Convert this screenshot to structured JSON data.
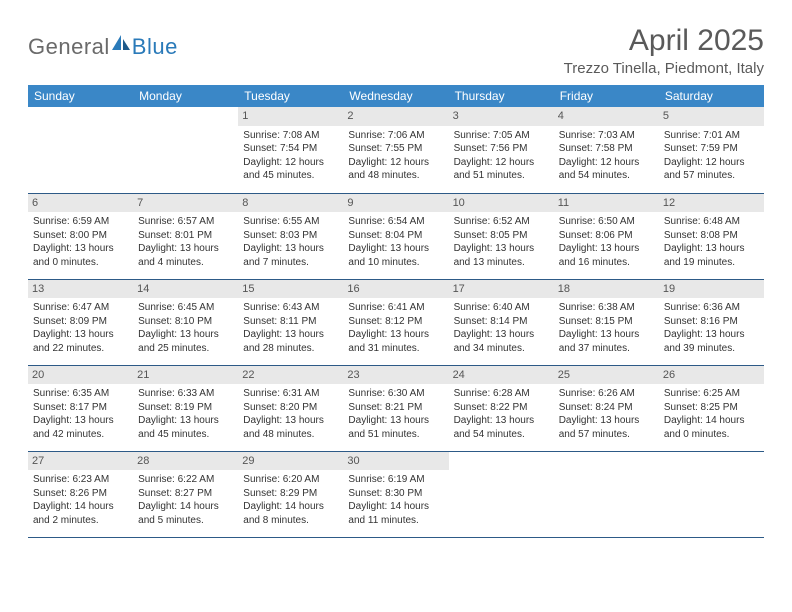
{
  "brand": {
    "part1": "General",
    "part2": "Blue"
  },
  "title": "April 2025",
  "location": "Trezzo Tinella, Piedmont, Italy",
  "colors": {
    "header_bg": "#3a87c7",
    "header_text": "#ffffff",
    "border": "#2d5a87",
    "daynum_bg": "#e8e8e8",
    "text": "#333333",
    "brand_gray": "#6a6a6a",
    "brand_blue": "#2a7ab9"
  },
  "weekdays": [
    "Sunday",
    "Monday",
    "Tuesday",
    "Wednesday",
    "Thursday",
    "Friday",
    "Saturday"
  ],
  "weeks": [
    [
      {
        "day": "",
        "sunrise": "",
        "sunset": "",
        "daylight": ""
      },
      {
        "day": "",
        "sunrise": "",
        "sunset": "",
        "daylight": ""
      },
      {
        "day": "1",
        "sunrise": "Sunrise: 7:08 AM",
        "sunset": "Sunset: 7:54 PM",
        "daylight": "Daylight: 12 hours and 45 minutes."
      },
      {
        "day": "2",
        "sunrise": "Sunrise: 7:06 AM",
        "sunset": "Sunset: 7:55 PM",
        "daylight": "Daylight: 12 hours and 48 minutes."
      },
      {
        "day": "3",
        "sunrise": "Sunrise: 7:05 AM",
        "sunset": "Sunset: 7:56 PM",
        "daylight": "Daylight: 12 hours and 51 minutes."
      },
      {
        "day": "4",
        "sunrise": "Sunrise: 7:03 AM",
        "sunset": "Sunset: 7:58 PM",
        "daylight": "Daylight: 12 hours and 54 minutes."
      },
      {
        "day": "5",
        "sunrise": "Sunrise: 7:01 AM",
        "sunset": "Sunset: 7:59 PM",
        "daylight": "Daylight: 12 hours and 57 minutes."
      }
    ],
    [
      {
        "day": "6",
        "sunrise": "Sunrise: 6:59 AM",
        "sunset": "Sunset: 8:00 PM",
        "daylight": "Daylight: 13 hours and 0 minutes."
      },
      {
        "day": "7",
        "sunrise": "Sunrise: 6:57 AM",
        "sunset": "Sunset: 8:01 PM",
        "daylight": "Daylight: 13 hours and 4 minutes."
      },
      {
        "day": "8",
        "sunrise": "Sunrise: 6:55 AM",
        "sunset": "Sunset: 8:03 PM",
        "daylight": "Daylight: 13 hours and 7 minutes."
      },
      {
        "day": "9",
        "sunrise": "Sunrise: 6:54 AM",
        "sunset": "Sunset: 8:04 PM",
        "daylight": "Daylight: 13 hours and 10 minutes."
      },
      {
        "day": "10",
        "sunrise": "Sunrise: 6:52 AM",
        "sunset": "Sunset: 8:05 PM",
        "daylight": "Daylight: 13 hours and 13 minutes."
      },
      {
        "day": "11",
        "sunrise": "Sunrise: 6:50 AM",
        "sunset": "Sunset: 8:06 PM",
        "daylight": "Daylight: 13 hours and 16 minutes."
      },
      {
        "day": "12",
        "sunrise": "Sunrise: 6:48 AM",
        "sunset": "Sunset: 8:08 PM",
        "daylight": "Daylight: 13 hours and 19 minutes."
      }
    ],
    [
      {
        "day": "13",
        "sunrise": "Sunrise: 6:47 AM",
        "sunset": "Sunset: 8:09 PM",
        "daylight": "Daylight: 13 hours and 22 minutes."
      },
      {
        "day": "14",
        "sunrise": "Sunrise: 6:45 AM",
        "sunset": "Sunset: 8:10 PM",
        "daylight": "Daylight: 13 hours and 25 minutes."
      },
      {
        "day": "15",
        "sunrise": "Sunrise: 6:43 AM",
        "sunset": "Sunset: 8:11 PM",
        "daylight": "Daylight: 13 hours and 28 minutes."
      },
      {
        "day": "16",
        "sunrise": "Sunrise: 6:41 AM",
        "sunset": "Sunset: 8:12 PM",
        "daylight": "Daylight: 13 hours and 31 minutes."
      },
      {
        "day": "17",
        "sunrise": "Sunrise: 6:40 AM",
        "sunset": "Sunset: 8:14 PM",
        "daylight": "Daylight: 13 hours and 34 minutes."
      },
      {
        "day": "18",
        "sunrise": "Sunrise: 6:38 AM",
        "sunset": "Sunset: 8:15 PM",
        "daylight": "Daylight: 13 hours and 37 minutes."
      },
      {
        "day": "19",
        "sunrise": "Sunrise: 6:36 AM",
        "sunset": "Sunset: 8:16 PM",
        "daylight": "Daylight: 13 hours and 39 minutes."
      }
    ],
    [
      {
        "day": "20",
        "sunrise": "Sunrise: 6:35 AM",
        "sunset": "Sunset: 8:17 PM",
        "daylight": "Daylight: 13 hours and 42 minutes."
      },
      {
        "day": "21",
        "sunrise": "Sunrise: 6:33 AM",
        "sunset": "Sunset: 8:19 PM",
        "daylight": "Daylight: 13 hours and 45 minutes."
      },
      {
        "day": "22",
        "sunrise": "Sunrise: 6:31 AM",
        "sunset": "Sunset: 8:20 PM",
        "daylight": "Daylight: 13 hours and 48 minutes."
      },
      {
        "day": "23",
        "sunrise": "Sunrise: 6:30 AM",
        "sunset": "Sunset: 8:21 PM",
        "daylight": "Daylight: 13 hours and 51 minutes."
      },
      {
        "day": "24",
        "sunrise": "Sunrise: 6:28 AM",
        "sunset": "Sunset: 8:22 PM",
        "daylight": "Daylight: 13 hours and 54 minutes."
      },
      {
        "day": "25",
        "sunrise": "Sunrise: 6:26 AM",
        "sunset": "Sunset: 8:24 PM",
        "daylight": "Daylight: 13 hours and 57 minutes."
      },
      {
        "day": "26",
        "sunrise": "Sunrise: 6:25 AM",
        "sunset": "Sunset: 8:25 PM",
        "daylight": "Daylight: 14 hours and 0 minutes."
      }
    ],
    [
      {
        "day": "27",
        "sunrise": "Sunrise: 6:23 AM",
        "sunset": "Sunset: 8:26 PM",
        "daylight": "Daylight: 14 hours and 2 minutes."
      },
      {
        "day": "28",
        "sunrise": "Sunrise: 6:22 AM",
        "sunset": "Sunset: 8:27 PM",
        "daylight": "Daylight: 14 hours and 5 minutes."
      },
      {
        "day": "29",
        "sunrise": "Sunrise: 6:20 AM",
        "sunset": "Sunset: 8:29 PM",
        "daylight": "Daylight: 14 hours and 8 minutes."
      },
      {
        "day": "30",
        "sunrise": "Sunrise: 6:19 AM",
        "sunset": "Sunset: 8:30 PM",
        "daylight": "Daylight: 14 hours and 11 minutes."
      },
      {
        "day": "",
        "sunrise": "",
        "sunset": "",
        "daylight": ""
      },
      {
        "day": "",
        "sunrise": "",
        "sunset": "",
        "daylight": ""
      },
      {
        "day": "",
        "sunrise": "",
        "sunset": "",
        "daylight": ""
      }
    ]
  ]
}
